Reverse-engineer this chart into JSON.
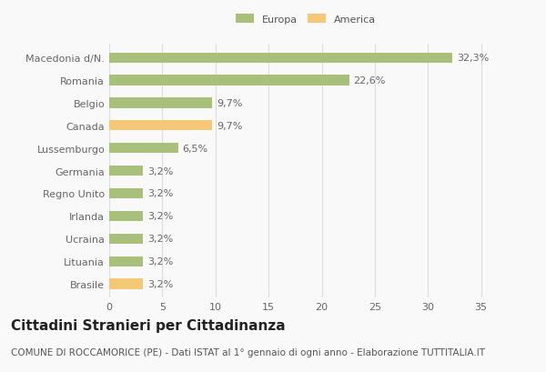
{
  "categories": [
    "Brasile",
    "Lituania",
    "Ucraina",
    "Irlanda",
    "Regno Unito",
    "Germania",
    "Lussemburgo",
    "Canada",
    "Belgio",
    "Romania",
    "Macedonia d/N."
  ],
  "values": [
    3.2,
    3.2,
    3.2,
    3.2,
    3.2,
    3.2,
    6.5,
    9.7,
    9.7,
    22.6,
    32.3
  ],
  "colors": [
    "#f5c878",
    "#a8c07a",
    "#a8c07a",
    "#a8c07a",
    "#a8c07a",
    "#a8c07a",
    "#a8c07a",
    "#f5c878",
    "#a8c07a",
    "#a8c07a",
    "#a8c07a"
  ],
  "labels": [
    "3,2%",
    "3,2%",
    "3,2%",
    "3,2%",
    "3,2%",
    "3,2%",
    "6,5%",
    "9,7%",
    "9,7%",
    "22,6%",
    "32,3%"
  ],
  "europa_color": "#a8c07a",
  "america_color": "#f5c878",
  "legend_europa": "Europa",
  "legend_america": "America",
  "title": "Cittadini Stranieri per Cittadinanza",
  "subtitle": "COMUNE DI ROCCAMORICE (PE) - Dati ISTAT al 1° gennaio di ogni anno - Elaborazione TUTTITALIA.IT",
  "xlim": [
    0,
    37
  ],
  "xticks": [
    0,
    5,
    10,
    15,
    20,
    25,
    30,
    35
  ],
  "background_color": "#f9f9f9",
  "grid_color": "#dddddd",
  "bar_height": 0.45,
  "title_fontsize": 11,
  "subtitle_fontsize": 7.5,
  "label_fontsize": 8,
  "tick_fontsize": 8
}
